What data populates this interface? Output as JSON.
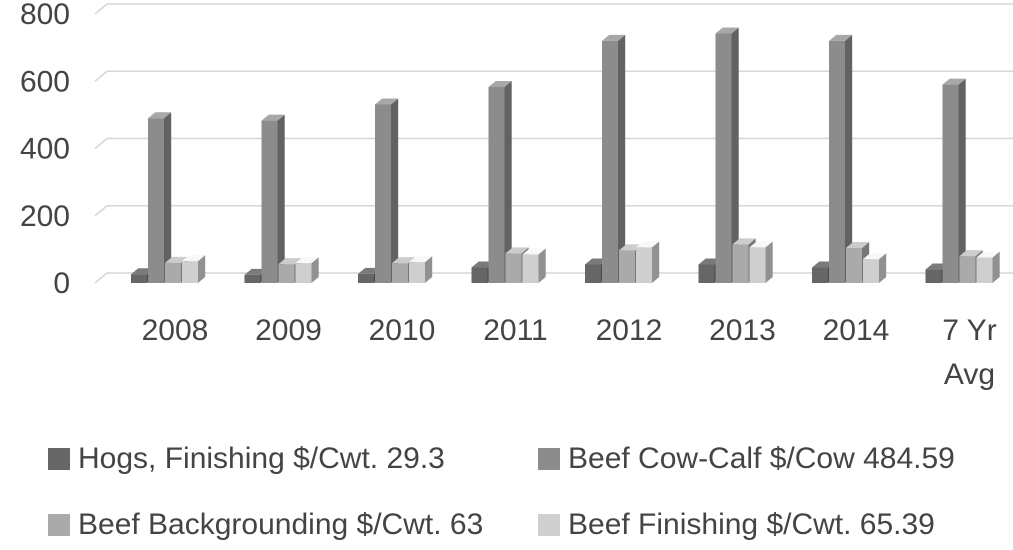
{
  "chart_data": {
    "type": "bar",
    "categories": [
      "2008",
      "2009",
      "2010",
      "2011",
      "2012",
      "2013",
      "2014",
      "7 Yr Avg"
    ],
    "category_lines": [
      [
        "2008"
      ],
      [
        "2009"
      ],
      [
        "2010"
      ],
      [
        "2011"
      ],
      [
        "2012"
      ],
      [
        "2013"
      ],
      [
        "2014"
      ],
      [
        "7 Yr",
        "Avg"
      ]
    ],
    "series": [
      {
        "name": "Hogs, Finishing $/Cwt. 29.3",
        "color": "#666666",
        "values": [
          26,
          24,
          27,
          46,
          55,
          55,
          46,
          40
        ]
      },
      {
        "name": "Beef Cow-Calf $/Cow 484.59",
        "color": "#8c8c8c",
        "values": [
          490,
          483,
          531,
          583,
          720,
          742,
          720,
          590
        ]
      },
      {
        "name": "Beef Backgrounding $/Cwt. 63",
        "color": "#aaaaaa",
        "values": [
          60,
          56,
          59,
          88,
          97,
          115,
          104,
          80
        ]
      },
      {
        "name": "Beef Finishing $/Cwt. 65.39",
        "color": "#cfcfcf",
        "values": [
          65,
          59,
          62,
          85,
          106,
          106,
          71,
          76
        ]
      }
    ],
    "y_ticks": [
      "0",
      "200",
      "400",
      "600",
      "800"
    ],
    "ylim": [
      0,
      800
    ],
    "grid": true,
    "legend_position": "bottom",
    "three_d": true
  }
}
